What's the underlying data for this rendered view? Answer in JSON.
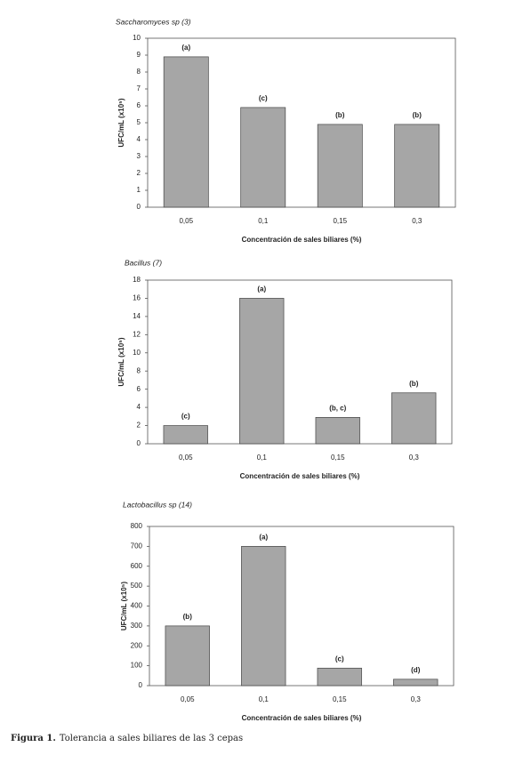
{
  "chart_data": [
    {
      "type": "bar",
      "title": "Saccharomyces sp (3)",
      "y_label": "UFC/mL (x10⁵)",
      "x_label": "Concentración de sales biliares (%)",
      "categories": [
        "0,05",
        "0,1",
        "0,15",
        "0,3"
      ],
      "values": [
        8.9,
        5.9,
        4.9,
        4.9
      ],
      "annotations": [
        "(a)",
        "(c)",
        "(b)",
        "(b)"
      ],
      "color": "#a6a6a6",
      "ylim": [
        0,
        10
      ],
      "yticks": [
        0,
        1,
        2,
        3,
        4,
        5,
        6,
        7,
        8,
        9,
        10
      ]
    },
    {
      "type": "bar",
      "title": "Bacillus (7)",
      "y_label": "UFC/mL (x10⁵)",
      "x_label": "Concentración de sales biliares (%)",
      "categories": [
        "0,05",
        "0,1",
        "0,15",
        "0,3"
      ],
      "values": [
        2,
        16,
        2.9,
        5.6
      ],
      "annotations": [
        "(c)",
        "(a)",
        "(b, c)",
        "(b)"
      ],
      "color": "#a6a6a6",
      "ylim": [
        0,
        18
      ],
      "yticks": [
        0,
        2,
        4,
        6,
        8,
        10,
        12,
        14,
        16,
        18
      ]
    },
    {
      "type": "bar",
      "title": "Lactobacillus sp (14)",
      "y_label": "UFC/mL (x10⁵)",
      "x_label": "Concentración de sales biliares (%)",
      "categories": [
        "0,05",
        "0,1",
        "0,15",
        "0,3"
      ],
      "values": [
        300,
        700,
        88,
        32
      ],
      "annotations": [
        "(b)",
        "(a)",
        "(c)",
        "(d)"
      ],
      "color": "#a6a6a6",
      "ylim": [
        0,
        800
      ],
      "yticks": [
        0,
        100,
        200,
        300,
        400,
        500,
        600,
        700,
        800
      ]
    }
  ],
  "caption": {
    "label": "Figura 1.",
    "text": "Tolerancia a sales biliares de las 3 cepas"
  }
}
